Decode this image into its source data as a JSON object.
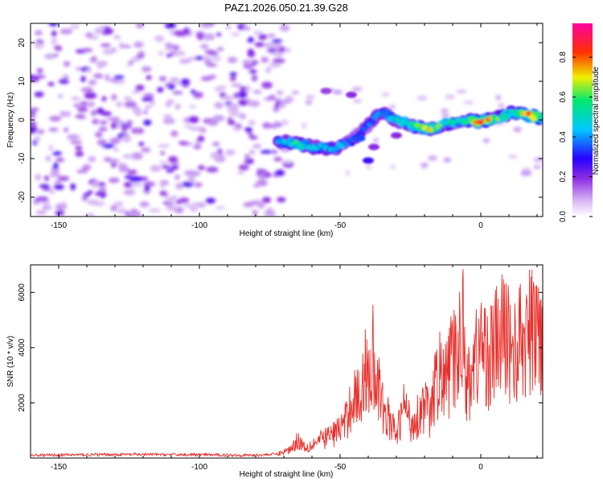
{
  "title": "PAZ1.2026.050.21.39.G28",
  "colors": {
    "snr_line": "#e8302c",
    "colormap": [
      "#ffffff",
      "#d8b8f4",
      "#8a2be2",
      "#2a00ff",
      "#00c8ff",
      "#00e870",
      "#f0f000",
      "#ff3000",
      "#ff00a0"
    ]
  },
  "chart_data": [
    {
      "type": "heatmap",
      "title": "PAZ1.2026.050.21.39.G28",
      "xlabel": "Height of straight line (km)",
      "ylabel": "Frequency (Hz)",
      "xlim": [
        -160,
        22
      ],
      "ylim": [
        -25,
        25
      ],
      "xticks": [
        -150,
        -100,
        -50,
        0
      ],
      "yticks": [
        -20,
        -10,
        0,
        10,
        20
      ],
      "colorbar": {
        "label": "Normalized spectral amplitude",
        "range": [
          0,
          0.97
        ],
        "ticks": [
          "0.0",
          "0.2",
          "0.4",
          "0.6",
          "0.8"
        ],
        "tick_values": [
          0,
          0.2,
          0.4,
          0.6,
          0.8
        ]
      },
      "noise_region_x": [
        -160,
        -70
      ],
      "signal_track": [
        {
          "x": -72,
          "y": -5.5,
          "amp": 0.4
        },
        {
          "x": -66,
          "y": -6.0,
          "amp": 0.55
        },
        {
          "x": -60,
          "y": -7.0,
          "amp": 0.45
        },
        {
          "x": -52,
          "y": -7.5,
          "amp": 0.45
        },
        {
          "x": -44,
          "y": -4.5,
          "amp": 0.3
        },
        {
          "x": -36,
          "y": 2.0,
          "amp": 0.4
        },
        {
          "x": -30,
          "y": 0.0,
          "amp": 0.5
        },
        {
          "x": -24,
          "y": -1.5,
          "amp": 0.55
        },
        {
          "x": -18,
          "y": -2.5,
          "amp": 0.7
        },
        {
          "x": -12,
          "y": -1.0,
          "amp": 0.5
        },
        {
          "x": -6,
          "y": 0.0,
          "amp": 0.5
        },
        {
          "x": 0,
          "y": -0.5,
          "amp": 0.85
        },
        {
          "x": 6,
          "y": 0.5,
          "amp": 0.6
        },
        {
          "x": 12,
          "y": 2.0,
          "amp": 0.5
        },
        {
          "x": 18,
          "y": 1.0,
          "amp": 0.85
        },
        {
          "x": 22,
          "y": 0.5,
          "amp": 0.6
        }
      ]
    },
    {
      "type": "line",
      "xlabel": "Height of straight line (km)",
      "ylabel": "SNR (10 * v/v)",
      "xlim": [
        -160,
        22
      ],
      "ylim": [
        0,
        7000
      ],
      "xticks": [
        -150,
        -100,
        -50,
        0
      ],
      "yticks": [
        2000,
        4000,
        6000
      ],
      "series": [
        {
          "name": "SNR",
          "x": [
            -160,
            -140,
            -120,
            -100,
            -80,
            -72,
            -68,
            -65,
            -62,
            -60,
            -56,
            -52,
            -48,
            -45,
            -43,
            -41,
            -39,
            -38,
            -37,
            -35,
            -33,
            -30,
            -27,
            -25,
            -22,
            -20,
            -18,
            -15,
            -13,
            -11,
            -9,
            -7,
            -6,
            -5,
            -4,
            -3,
            -1,
            0,
            3,
            6,
            9,
            12,
            15,
            18,
            20,
            22
          ],
          "y": [
            100,
            120,
            130,
            120,
            100,
            150,
            300,
            650,
            380,
            500,
            700,
            900,
            1300,
            2400,
            2000,
            3200,
            3400,
            3500,
            2800,
            1800,
            1500,
            800,
            2000,
            1200,
            1600,
            2000,
            1500,
            3200,
            2600,
            3300,
            3600,
            4200,
            5500,
            2400,
            3000,
            3300,
            3800,
            4100,
            3600,
            4200,
            4500,
            3800,
            4300,
            4500,
            4700,
            4600
          ]
        }
      ]
    }
  ]
}
